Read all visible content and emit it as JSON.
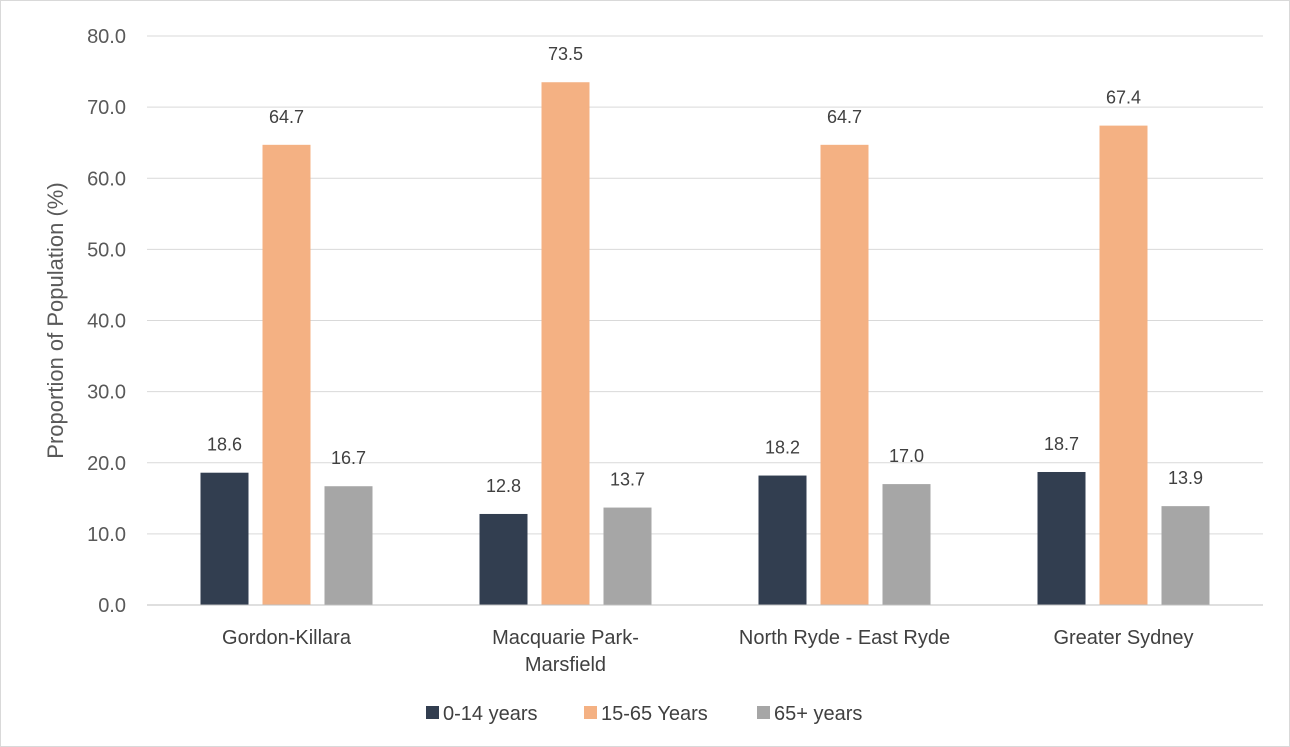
{
  "chart_data": {
    "type": "bar",
    "title": "",
    "xlabel": "",
    "ylabel": "Proportion of Population (%)",
    "ylim": [
      0,
      80
    ],
    "yticks": [
      "0.0",
      "10.0",
      "20.0",
      "30.0",
      "40.0",
      "50.0",
      "60.0",
      "70.0",
      "80.0"
    ],
    "grid": true,
    "legend_position": "bottom",
    "categories": [
      [
        "Gordon-Killara"
      ],
      [
        "Macquarie Park-",
        "Marsfield"
      ],
      [
        "North Ryde - East Ryde"
      ],
      [
        "Greater Sydney"
      ]
    ],
    "series": [
      {
        "name": "0-14 years",
        "color": "#323e50",
        "values": [
          18.6,
          12.8,
          18.2,
          18.7
        ],
        "labels": [
          "18.6",
          "12.8",
          "18.2",
          "18.7"
        ]
      },
      {
        "name": "15-65 Years",
        "color": "#f4b183",
        "values": [
          64.7,
          73.5,
          64.7,
          67.4
        ],
        "labels": [
          "64.7",
          "73.5",
          "64.7",
          "67.4"
        ]
      },
      {
        "name": "65+ years",
        "color": "#a6a6a6",
        "values": [
          16.7,
          13.7,
          17.0,
          13.9
        ],
        "labels": [
          "16.7",
          "13.7",
          "17.0",
          "13.9"
        ]
      }
    ]
  }
}
